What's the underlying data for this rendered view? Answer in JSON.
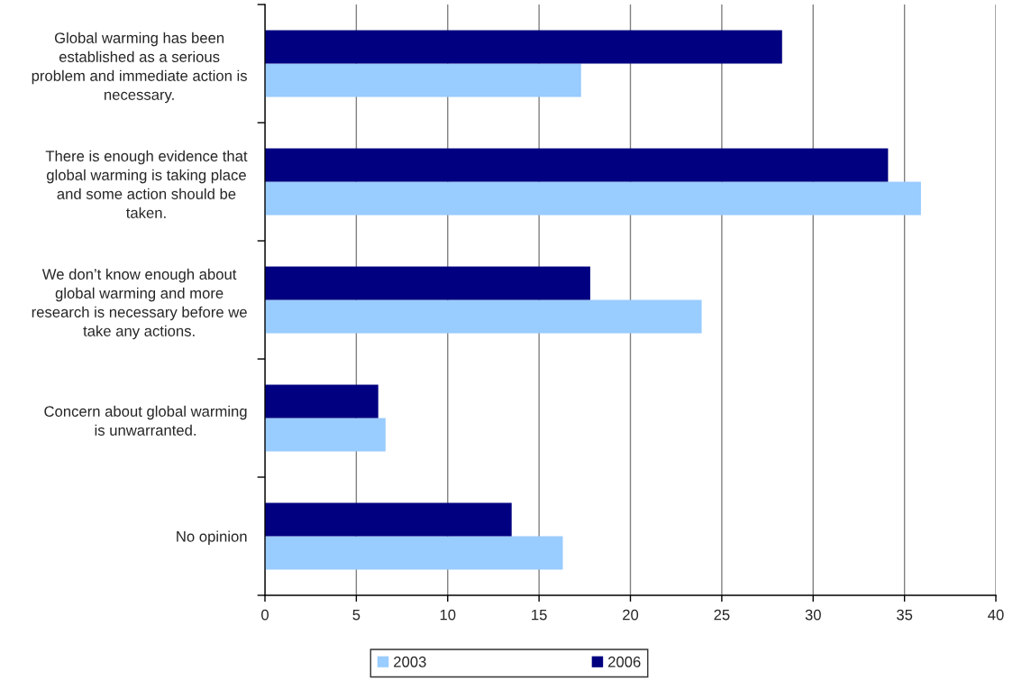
{
  "chart_data": {
    "type": "bar",
    "orientation": "horizontal",
    "categories": [
      "Global warming has been\nestablished as a serious\nproblem and immediate action is\nnecessary.",
      "There is enough evidence that\nglobal warming is taking place\nand some action should be\ntaken.",
      "We don’t know enough about\nglobal warming and more\nresearch is necessary before we\ntake any actions.",
      "Concern about global warming\nis unwarranted.",
      "No opinion"
    ],
    "series": [
      {
        "name": "2003",
        "color": "#99ccff",
        "values": [
          17.3,
          35.9,
          23.9,
          6.6,
          16.3
        ]
      },
      {
        "name": "2006",
        "color": "#000080",
        "values": [
          28.3,
          34.1,
          17.8,
          6.2,
          13.5
        ]
      }
    ],
    "xlim": [
      0,
      40
    ],
    "xticks": [
      0,
      5,
      10,
      15,
      20,
      25,
      30,
      35,
      40
    ],
    "grid": "x",
    "legend": "bottom"
  }
}
